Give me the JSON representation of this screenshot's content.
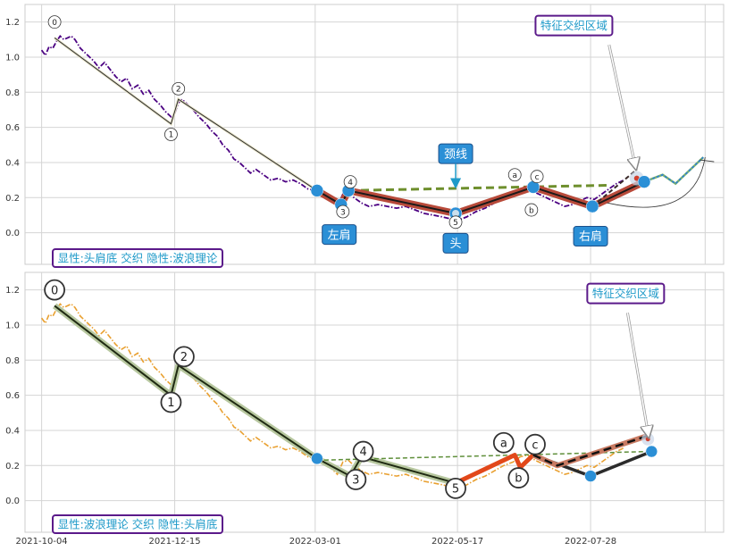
{
  "chart_data": [
    {
      "type": "line",
      "panel": "top",
      "ylim": [
        -0.18,
        1.3
      ],
      "yticks": [
        "0.0",
        "0.2",
        "0.4",
        "0.6",
        "0.8",
        "1.0",
        "1.2"
      ],
      "xlim": [
        "2021-09-25",
        "2022-10-08"
      ],
      "xgrid": [
        "2021-10-04",
        "2021-12-15",
        "2022-03-01",
        "2022-05-17",
        "2022-07-28",
        "2022-09-28"
      ],
      "grid": true,
      "price_style": "purple dash-dot",
      "price": [
        [
          "2021-10-04",
          1.04
        ],
        [
          "2021-10-06",
          1.01
        ],
        [
          "2021-10-08",
          1.06
        ],
        [
          "2021-10-10",
          1.05
        ],
        [
          "2021-10-12",
          1.09
        ],
        [
          "2021-10-14",
          1.12
        ],
        [
          "2021-10-16",
          1.1
        ],
        [
          "2021-10-18",
          1.11
        ],
        [
          "2021-10-20",
          1.12
        ],
        [
          "2021-10-22",
          1.1
        ],
        [
          "2021-10-25",
          1.05
        ],
        [
          "2021-10-28",
          1.02
        ],
        [
          "2021-11-01",
          0.98
        ],
        [
          "2021-11-04",
          0.94
        ],
        [
          "2021-11-07",
          0.97
        ],
        [
          "2021-11-10",
          0.93
        ],
        [
          "2021-11-13",
          0.89
        ],
        [
          "2021-11-16",
          0.86
        ],
        [
          "2021-11-19",
          0.88
        ],
        [
          "2021-11-22",
          0.82
        ],
        [
          "2021-11-25",
          0.84
        ],
        [
          "2021-11-28",
          0.79
        ],
        [
          "2021-12-01",
          0.81
        ],
        [
          "2021-12-04",
          0.76
        ],
        [
          "2021-12-07",
          0.73
        ],
        [
          "2021-12-10",
          0.69
        ],
        [
          "2021-12-13",
          0.66
        ],
        [
          "2021-12-15",
          0.68
        ],
        [
          "2021-12-17",
          0.74
        ],
        [
          "2021-12-19",
          0.76
        ],
        [
          "2021-12-22",
          0.73
        ],
        [
          "2021-12-25",
          0.7
        ],
        [
          "2021-12-28",
          0.66
        ],
        [
          "2022-01-01",
          0.62
        ],
        [
          "2022-01-04",
          0.58
        ],
        [
          "2022-01-07",
          0.55
        ],
        [
          "2022-01-10",
          0.5
        ],
        [
          "2022-01-13",
          0.47
        ],
        [
          "2022-01-16",
          0.42
        ],
        [
          "2022-01-19",
          0.4
        ],
        [
          "2022-01-22",
          0.37
        ],
        [
          "2022-01-25",
          0.34
        ],
        [
          "2022-01-28",
          0.36
        ],
        [
          "2022-02-01",
          0.33
        ],
        [
          "2022-02-05",
          0.3
        ],
        [
          "2022-02-09",
          0.31
        ],
        [
          "2022-02-13",
          0.29
        ],
        [
          "2022-02-17",
          0.3
        ],
        [
          "2022-02-21",
          0.28
        ],
        [
          "2022-02-25",
          0.25
        ],
        [
          "2022-03-01",
          0.24
        ],
        [
          "2022-03-05",
          0.22
        ],
        [
          "2022-03-09",
          0.19
        ],
        [
          "2022-03-13",
          0.15
        ],
        [
          "2022-03-16",
          0.22
        ],
        [
          "2022-03-19",
          0.23
        ],
        [
          "2022-03-22",
          0.2
        ],
        [
          "2022-03-26",
          0.17
        ],
        [
          "2022-03-30",
          0.15
        ],
        [
          "2022-04-04",
          0.16
        ],
        [
          "2022-04-09",
          0.15
        ],
        [
          "2022-04-14",
          0.14
        ],
        [
          "2022-04-19",
          0.15
        ],
        [
          "2022-04-24",
          0.13
        ],
        [
          "2022-04-29",
          0.11
        ],
        [
          "2022-05-04",
          0.1
        ],
        [
          "2022-05-09",
          0.09
        ],
        [
          "2022-05-13",
          0.08
        ],
        [
          "2022-05-17",
          0.07
        ],
        [
          "2022-05-22",
          0.09
        ],
        [
          "2022-05-27",
          0.12
        ],
        [
          "2022-06-01",
          0.14
        ],
        [
          "2022-06-06",
          0.17
        ],
        [
          "2022-06-11",
          0.2
        ],
        [
          "2022-06-16",
          0.22
        ],
        [
          "2022-06-20",
          0.25
        ],
        [
          "2022-06-24",
          0.26
        ],
        [
          "2022-06-28",
          0.23
        ],
        [
          "2022-07-02",
          0.21
        ],
        [
          "2022-07-06",
          0.19
        ],
        [
          "2022-07-10",
          0.17
        ],
        [
          "2022-07-14",
          0.15
        ],
        [
          "2022-07-18",
          0.16
        ],
        [
          "2022-07-22",
          0.18
        ],
        [
          "2022-07-26",
          0.2
        ],
        [
          "2022-07-30",
          0.19
        ],
        [
          "2022-08-03",
          0.22
        ],
        [
          "2022-08-07",
          0.25
        ],
        [
          "2022-08-11",
          0.28
        ],
        [
          "2022-08-15",
          0.3
        ]
      ],
      "wave": [
        [
          "2021-10-11",
          1.11
        ],
        [
          "2021-12-13",
          0.62
        ],
        [
          "2021-12-17",
          0.76
        ],
        [
          "2022-03-02",
          0.24
        ]
      ],
      "wave_labels": [
        {
          "text": "0",
          "x": "2021-10-11",
          "y": 1.2
        },
        {
          "text": "1",
          "x": "2021-12-13",
          "y": 0.56
        },
        {
          "text": "2",
          "x": "2021-12-17",
          "y": 0.82
        },
        {
          "text": "3",
          "x": "2022-03-16",
          "y": 0.12
        },
        {
          "text": "4",
          "x": "2022-03-20",
          "y": 0.29
        },
        {
          "text": "5",
          "x": "2022-05-16",
          "y": 0.06
        },
        {
          "text": "a",
          "x": "2022-06-17",
          "y": 0.33
        },
        {
          "text": "b",
          "x": "2022-06-26",
          "y": 0.13
        },
        {
          "text": "c",
          "x": "2022-06-29",
          "y": 0.32
        }
      ],
      "hs_line": [
        [
          "2022-03-02",
          0.24
        ],
        [
          "2022-03-15",
          0.16
        ],
        [
          "2022-03-19",
          0.24
        ],
        [
          "2022-05-16",
          0.11
        ],
        [
          "2022-06-27",
          0.26
        ],
        [
          "2022-07-29",
          0.15
        ],
        [
          "2022-08-26",
          0.29
        ]
      ],
      "hs_points": [
        [
          "2022-03-02",
          0.24
        ],
        [
          "2022-03-15",
          0.16
        ],
        [
          "2022-03-19",
          0.24
        ],
        [
          "2022-05-16",
          0.11
        ],
        [
          "2022-06-27",
          0.26
        ],
        [
          "2022-07-29",
          0.15
        ],
        [
          "2022-08-26",
          0.29
        ]
      ],
      "neckline": [
        [
          "2022-03-19",
          0.24
        ],
        [
          "2022-08-06",
          0.27
        ]
      ],
      "projection": [
        [
          "2022-08-26",
          0.29
        ],
        [
          "2022-09-05",
          0.33
        ],
        [
          "2022-09-12",
          0.28
        ],
        [
          "2022-09-27",
          0.43
        ]
      ],
      "labels": {
        "left_shoulder": {
          "text": "左肩",
          "x": "2022-03-14",
          "y": -0.01
        },
        "head": {
          "text": "头",
          "x": "2022-05-16",
          "y": -0.06
        },
        "right_shoulder": {
          "text": "右肩",
          "x": "2022-07-28",
          "y": -0.02
        },
        "neck": {
          "text": "颈线",
          "x": "2022-05-16",
          "y": 0.45
        },
        "zone": {
          "text": "特征交织区域",
          "x": "2022-07-19",
          "y": 1.18
        },
        "caption": {
          "text": "显性:头肩底 交织 隐性:波浪理论"
        }
      }
    },
    {
      "type": "line",
      "panel": "bottom",
      "ylim": [
        -0.18,
        1.3
      ],
      "yticks": [
        "0.0",
        "0.2",
        "0.4",
        "0.6",
        "0.8",
        "1.0",
        "1.2"
      ],
      "xlim": [
        "2021-09-25",
        "2022-10-08"
      ],
      "xticks": [
        "2021-10-04",
        "2021-12-15",
        "2022-03-01",
        "2022-05-17",
        "2022-07-28"
      ],
      "grid": true,
      "price_style": "orange dash-dot",
      "wave": [
        [
          "2021-10-11",
          1.11
        ],
        [
          "2021-12-13",
          0.6
        ],
        [
          "2021-12-17",
          0.77
        ],
        [
          "2022-03-02",
          0.24
        ],
        [
          "2022-03-20",
          0.14
        ],
        [
          "2022-03-26",
          0.25
        ],
        [
          "2022-05-16",
          0.1
        ]
      ],
      "abc": [
        [
          "2022-05-16",
          0.1
        ],
        [
          "2022-06-17",
          0.26
        ],
        [
          "2022-06-20",
          0.19
        ],
        [
          "2022-06-27",
          0.26
        ]
      ],
      "hs_line": [
        [
          "2022-06-27",
          0.26
        ],
        [
          "2022-07-28",
          0.14
        ],
        [
          "2022-08-30",
          0.28
        ]
      ],
      "projection": [
        [
          "2022-06-27",
          0.26
        ],
        [
          "2022-07-10",
          0.2
        ],
        [
          "2022-08-28",
          0.37
        ]
      ],
      "neckline": [
        [
          "2022-03-02",
          0.23
        ],
        [
          "2022-08-28",
          0.28
        ]
      ],
      "points": [
        [
          "2022-03-02",
          0.24
        ],
        [
          "2022-07-28",
          0.14
        ],
        [
          "2022-08-30",
          0.28
        ]
      ],
      "wave_labels": [
        {
          "text": "0",
          "x": "2021-10-11",
          "y": 1.2
        },
        {
          "text": "1",
          "x": "2021-12-13",
          "y": 0.56
        },
        {
          "text": "2",
          "x": "2021-12-20",
          "y": 0.82
        },
        {
          "text": "3",
          "x": "2022-03-23",
          "y": 0.12
        },
        {
          "text": "4",
          "x": "2022-03-27",
          "y": 0.28
        },
        {
          "text": "5",
          "x": "2022-05-16",
          "y": 0.07
        },
        {
          "text": "a",
          "x": "2022-06-11",
          "y": 0.33
        },
        {
          "text": "b",
          "x": "2022-06-19",
          "y": 0.13
        },
        {
          "text": "c",
          "x": "2022-06-28",
          "y": 0.32
        }
      ],
      "labels": {
        "zone": {
          "text": "特征交织区域",
          "x": "2022-08-16",
          "y": 1.18
        },
        "caption": {
          "text": "显性:波浪理论 交织 隐性:头肩底"
        }
      }
    }
  ],
  "colors": {
    "teal_text": "#1f9ac9",
    "box_border": "#5b1a8a",
    "blue_point": "#2b8fd6",
    "head_shoulder": "#b84a3a",
    "neckline_top": "#6e8f2d",
    "projection_blue": "#2b7fd6",
    "purple_price": "#4b0082",
    "orange_price": "#e9a030",
    "abc_red": "#e2481a",
    "wave_green": "#b7c79f"
  }
}
